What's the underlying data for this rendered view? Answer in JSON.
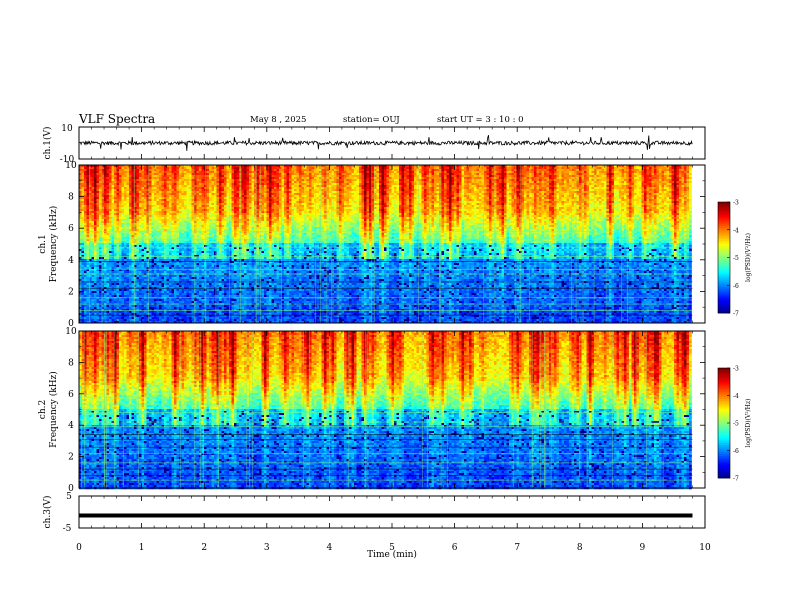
{
  "header": {
    "title": "VLF Spectra",
    "date": "May 8  , 2025",
    "station": "station= OUJ",
    "start_ut": "start  UT  =   3  : 10 : 0"
  },
  "chart_data": [
    {
      "type": "line",
      "panel": "ch1-time-series",
      "ylabel": "ch.1(V)",
      "ylim": [
        -10,
        10
      ],
      "yticks": [
        "10",
        "-10"
      ],
      "x_range_min": [
        0,
        9.8
      ],
      "baseline": 0,
      "noise_amplitude": 1.2,
      "spike_amplitude": 5
    },
    {
      "type": "heatmap",
      "panel": "ch1-spectrogram",
      "ylabel_line1": "ch.1",
      "ylabel_line2": "Frequency  (kHz)",
      "ylim": [
        0,
        10
      ],
      "yticks": [
        "0",
        "2",
        "4",
        "6",
        "8",
        "10"
      ],
      "colorbar": {
        "label": "log(PSD)(V²/Hz)",
        "ticks": [
          "-3",
          "-4",
          "-5",
          "-6",
          "-7"
        ],
        "range": [
          -7,
          -3
        ]
      }
    },
    {
      "type": "heatmap",
      "panel": "ch2-spectrogram",
      "ylabel_line1": "ch.2",
      "ylabel_line2": "Frequency  (kHz)",
      "ylim": [
        0,
        10
      ],
      "yticks": [
        "0",
        "2",
        "4",
        "6",
        "8",
        "10"
      ],
      "colorbar": {
        "label": "log(PSD)(V²/Hz)",
        "ticks": [
          "-3",
          "-4",
          "-5",
          "-6",
          "-7"
        ],
        "range": [
          -7,
          -3
        ]
      }
    },
    {
      "type": "line",
      "panel": "ch3-time-series",
      "ylabel": "ch.3(V)",
      "ylim": [
        -5,
        5
      ],
      "yticks": [
        "5",
        "-5"
      ],
      "x_range_min": [
        0,
        9.8
      ],
      "baseline": -1.1
    }
  ],
  "xaxis": {
    "label": "Time  (min)",
    "ticks": [
      "0",
      "1",
      "2",
      "3",
      "4",
      "5",
      "6",
      "7",
      "8",
      "9",
      "10"
    ],
    "range": [
      0,
      10
    ]
  }
}
